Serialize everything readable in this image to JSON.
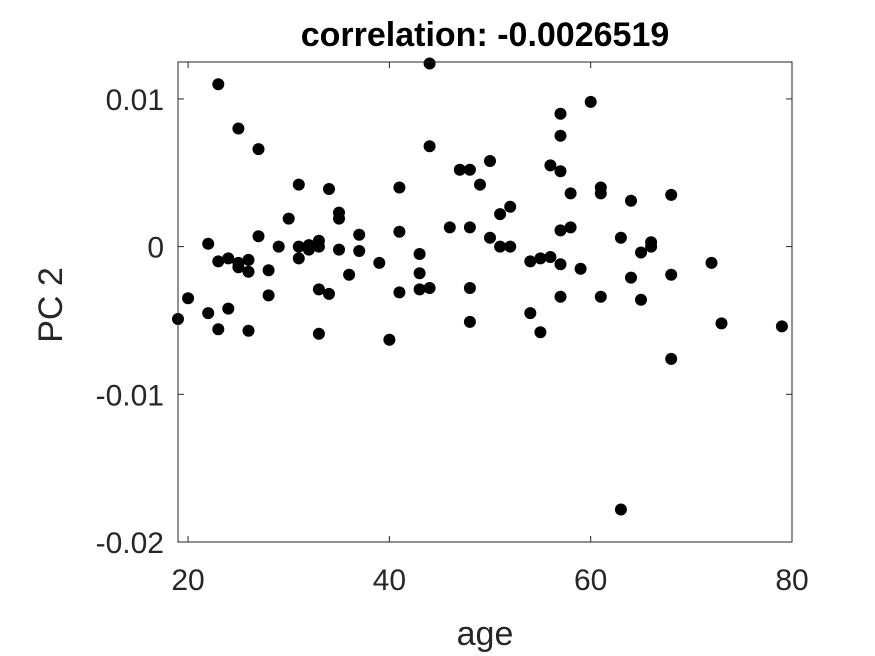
{
  "chart_data": {
    "type": "scatter",
    "title": "correlation: -0.0026519",
    "xlabel": "age",
    "ylabel": "PC 2",
    "xlim": [
      19,
      80
    ],
    "ylim": [
      -0.02,
      0.0125
    ],
    "xticks": [
      20,
      40,
      60,
      80
    ],
    "xtick_labels": [
      "20",
      "40",
      "60",
      "80"
    ],
    "yticks": [
      -0.02,
      -0.01,
      0,
      0.01
    ],
    "ytick_labels": [
      "-0.02",
      "-0.01",
      "0",
      "0.01"
    ],
    "grid": false,
    "marker_color": "#000000",
    "points": [
      {
        "x": 19,
        "y": -0.0049
      },
      {
        "x": 20,
        "y": -0.0035
      },
      {
        "x": 22,
        "y": 0.0002
      },
      {
        "x": 22,
        "y": -0.0045
      },
      {
        "x": 23,
        "y": 0.011
      },
      {
        "x": 23,
        "y": -0.001
      },
      {
        "x": 23,
        "y": -0.0056
      },
      {
        "x": 24,
        "y": -0.0008
      },
      {
        "x": 24,
        "y": -0.0042
      },
      {
        "x": 25,
        "y": 0.008
      },
      {
        "x": 25,
        "y": -0.0014
      },
      {
        "x": 25,
        "y": -0.0011
      },
      {
        "x": 26,
        "y": -0.0009
      },
      {
        "x": 26,
        "y": -0.0017
      },
      {
        "x": 26,
        "y": -0.0057
      },
      {
        "x": 27,
        "y": 0.0066
      },
      {
        "x": 27,
        "y": 0.0007
      },
      {
        "x": 28,
        "y": -0.0016
      },
      {
        "x": 28,
        "y": -0.0033
      },
      {
        "x": 29,
        "y": 0.0
      },
      {
        "x": 30,
        "y": 0.0019
      },
      {
        "x": 31,
        "y": 0.0042
      },
      {
        "x": 31,
        "y": 0.0
      },
      {
        "x": 31,
        "y": -0.0008
      },
      {
        "x": 32,
        "y": -0.0002
      },
      {
        "x": 32,
        "y": 0.0001
      },
      {
        "x": 33,
        "y": 0.0004
      },
      {
        "x": 33,
        "y": 0.0
      },
      {
        "x": 33,
        "y": -0.0029
      },
      {
        "x": 33,
        "y": -0.0059
      },
      {
        "x": 34,
        "y": 0.0039
      },
      {
        "x": 34,
        "y": -0.0032
      },
      {
        "x": 35,
        "y": 0.0023
      },
      {
        "x": 35,
        "y": 0.0019
      },
      {
        "x": 35,
        "y": -0.0002
      },
      {
        "x": 36,
        "y": -0.0019
      },
      {
        "x": 37,
        "y": 0.0008
      },
      {
        "x": 37,
        "y": -0.0003
      },
      {
        "x": 39,
        "y": -0.0011
      },
      {
        "x": 40,
        "y": -0.0063
      },
      {
        "x": 41,
        "y": 0.004
      },
      {
        "x": 41,
        "y": 0.001
      },
      {
        "x": 41,
        "y": -0.0031
      },
      {
        "x": 43,
        "y": -0.0005
      },
      {
        "x": 43,
        "y": -0.0018
      },
      {
        "x": 43,
        "y": -0.0029
      },
      {
        "x": 44,
        "y": 0.0124
      },
      {
        "x": 44,
        "y": 0.0068
      },
      {
        "x": 44,
        "y": -0.0028
      },
      {
        "x": 46,
        "y": 0.0013
      },
      {
        "x": 47,
        "y": 0.0052
      },
      {
        "x": 48,
        "y": 0.0052
      },
      {
        "x": 48,
        "y": 0.0013
      },
      {
        "x": 48,
        "y": -0.0028
      },
      {
        "x": 48,
        "y": -0.0051
      },
      {
        "x": 49,
        "y": 0.0042
      },
      {
        "x": 50,
        "y": 0.0058
      },
      {
        "x": 50,
        "y": 0.0006
      },
      {
        "x": 51,
        "y": 0.0022
      },
      {
        "x": 51,
        "y": 0.0
      },
      {
        "x": 52,
        "y": 0.0027
      },
      {
        "x": 52,
        "y": 0.0
      },
      {
        "x": 54,
        "y": -0.001
      },
      {
        "x": 54,
        "y": -0.0045
      },
      {
        "x": 55,
        "y": -0.0008
      },
      {
        "x": 55,
        "y": -0.0058
      },
      {
        "x": 56,
        "y": 0.0055
      },
      {
        "x": 56,
        "y": -0.0007
      },
      {
        "x": 57,
        "y": 0.009
      },
      {
        "x": 57,
        "y": 0.0075
      },
      {
        "x": 57,
        "y": 0.0051
      },
      {
        "x": 57,
        "y": 0.0011
      },
      {
        "x": 57,
        "y": -0.0012
      },
      {
        "x": 57,
        "y": -0.0034
      },
      {
        "x": 58,
        "y": 0.0036
      },
      {
        "x": 58,
        "y": 0.0013
      },
      {
        "x": 59,
        "y": -0.0015
      },
      {
        "x": 60,
        "y": 0.0098
      },
      {
        "x": 61,
        "y": 0.004
      },
      {
        "x": 61,
        "y": 0.0036
      },
      {
        "x": 61,
        "y": -0.0034
      },
      {
        "x": 63,
        "y": 0.0006
      },
      {
        "x": 63,
        "y": -0.0178
      },
      {
        "x": 64,
        "y": 0.0031
      },
      {
        "x": 64,
        "y": -0.0021
      },
      {
        "x": 65,
        "y": -0.0004
      },
      {
        "x": 65,
        "y": -0.0036
      },
      {
        "x": 66,
        "y": 0.0003
      },
      {
        "x": 66,
        "y": 0.0
      },
      {
        "x": 68,
        "y": 0.0035
      },
      {
        "x": 68,
        "y": -0.0019
      },
      {
        "x": 68,
        "y": -0.0076
      },
      {
        "x": 72,
        "y": -0.0011
      },
      {
        "x": 73,
        "y": -0.0052
      },
      {
        "x": 79,
        "y": -0.0054
      }
    ]
  }
}
